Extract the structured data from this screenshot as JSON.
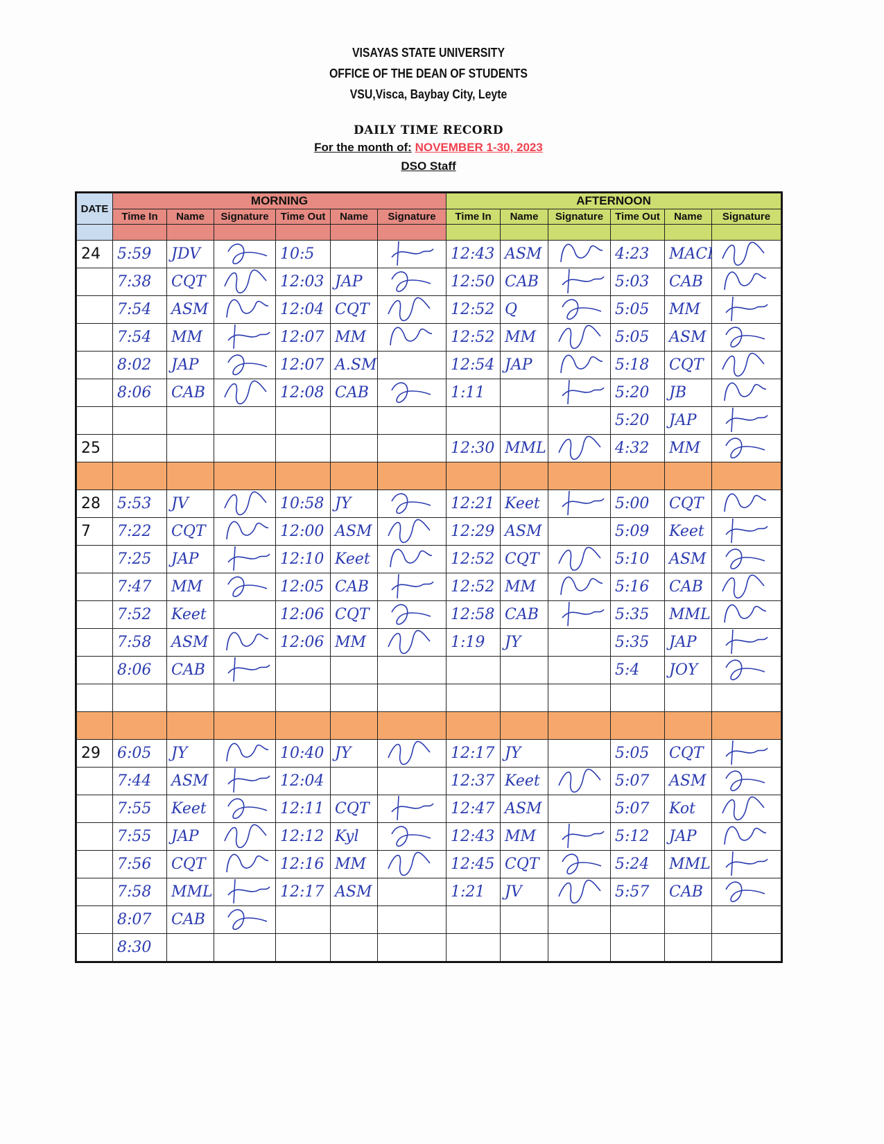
{
  "header": {
    "university": "VISAYAS STATE UNIVERSITY",
    "office": "OFFICE OF THE DEAN OF STUDENTS",
    "address": "VSU,Visca, Baybay City, Leyte",
    "title": "DAILY TIME RECORD",
    "month_label": "For the month of:",
    "month_value": "NOVEMBER 1-30, 2023",
    "staff": "DSO Staff"
  },
  "colors": {
    "morning": "#e68a82",
    "afternoon": "#cddd6f",
    "date": "#c9dbef",
    "separator": "#f6a86c",
    "ink": "#2b3bb0",
    "month": "#f0414f"
  },
  "table": {
    "groups": {
      "date": "DATE",
      "morning": "MORNING",
      "afternoon": "AFTERNOON"
    },
    "columns": [
      "Time In",
      "Name",
      "Signature",
      "Time Out",
      "Name",
      "Signature",
      "Time In",
      "Name",
      "Signature",
      "Time Out",
      "Name",
      "Signature"
    ],
    "rows": [
      [
        "24",
        "5:59",
        "JDV",
        true,
        "10:5",
        "",
        true,
        "12:43",
        "ASM",
        true,
        "4:23",
        "MACE",
        true
      ],
      [
        "",
        "7:38",
        "CQT",
        true,
        "12:03",
        "JAP",
        true,
        "12:50",
        "CAB",
        true,
        "5:03",
        "CAB",
        true
      ],
      [
        "",
        "7:54",
        "ASM",
        true,
        "12:04",
        "CQT",
        true,
        "12:52",
        "Q",
        true,
        "5:05",
        "MM",
        true
      ],
      [
        "",
        "7:54",
        "MM",
        true,
        "12:07",
        "MM",
        true,
        "12:52",
        "MM",
        true,
        "5:05",
        "ASM",
        true
      ],
      [
        "",
        "8:02",
        "JAP",
        true,
        "12:07",
        "A.SM",
        false,
        "12:54",
        "JAP",
        true,
        "5:18",
        "CQT",
        true
      ],
      [
        "",
        "8:06",
        "CAB",
        true,
        "12:08",
        "CAB",
        true,
        "1:11",
        "",
        true,
        "5:20",
        "JB",
        true
      ],
      [
        "",
        "",
        "",
        false,
        "",
        "",
        false,
        "",
        "",
        false,
        "5:20",
        "JAP",
        true
      ],
      [
        "25",
        "",
        "",
        false,
        "",
        "",
        false,
        "12:30",
        "MML",
        true,
        "4:32",
        "MM",
        true
      ],
      "separator",
      [
        "28",
        "5:53",
        "JV",
        true,
        "10:58",
        "JY",
        true,
        "12:21",
        "Keet",
        true,
        "5:00",
        "CQT",
        true
      ],
      [
        "7",
        "7:22",
        "CQT",
        true,
        "12:00",
        "ASM",
        true,
        "12:29",
        "ASM",
        false,
        "5:09",
        "Keet",
        true
      ],
      [
        "",
        "7:25",
        "JAP",
        true,
        "12:10",
        "Keet",
        true,
        "12:52",
        "CQT",
        true,
        "5:10",
        "ASM",
        true
      ],
      [
        "",
        "7:47",
        "MM",
        true,
        "12:05",
        "CAB",
        true,
        "12:52",
        "MM",
        true,
        "5:16",
        "CAB",
        true
      ],
      [
        "",
        "7:52",
        "Keet",
        false,
        "12:06",
        "CQT",
        true,
        "12:58",
        "CAB",
        true,
        "5:35",
        "MML",
        true
      ],
      [
        "",
        "7:58",
        "ASM",
        true,
        "12:06",
        "MM",
        true,
        "1:19",
        "JY",
        false,
        "5:35",
        "JAP",
        true
      ],
      [
        "",
        "8:06",
        "CAB",
        true,
        "",
        "",
        false,
        "",
        "",
        false,
        "5:4",
        "JOY",
        true
      ],
      [
        "",
        "",
        "",
        false,
        "",
        "",
        false,
        "",
        "",
        false,
        "",
        "",
        false
      ],
      "separator",
      [
        "29",
        "6:05",
        "JY",
        true,
        "10:40",
        "JY",
        true,
        "12:17",
        "JY",
        false,
        "5:05",
        "CQT",
        true
      ],
      [
        "",
        "7:44",
        "ASM",
        true,
        "12:04",
        "",
        false,
        "12:37",
        "Keet",
        true,
        "5:07",
        "ASM",
        true
      ],
      [
        "",
        "7:55",
        "Keet",
        true,
        "12:11",
        "CQT",
        true,
        "12:47",
        "ASM",
        false,
        "5:07",
        "Kot",
        true
      ],
      [
        "",
        "7:55",
        "JAP",
        true,
        "12:12",
        "Kyl",
        true,
        "12:43",
        "MM",
        true,
        "5:12",
        "JAP",
        true
      ],
      [
        "",
        "7:56",
        "CQT",
        true,
        "12:16",
        "MM",
        true,
        "12:45",
        "CQT",
        true,
        "5:24",
        "MML",
        true
      ],
      [
        "",
        "7:58",
        "MML",
        true,
        "12:17",
        "ASM",
        false,
        "1:21",
        "JV",
        true,
        "5:57",
        "CAB",
        true
      ],
      [
        "",
        "8:07",
        "CAB",
        true,
        "",
        "",
        false,
        "",
        "",
        false,
        "",
        "",
        false
      ],
      [
        "",
        "8:30",
        "",
        false,
        "",
        "",
        false,
        "",
        "",
        false,
        "",
        "",
        false
      ]
    ]
  }
}
